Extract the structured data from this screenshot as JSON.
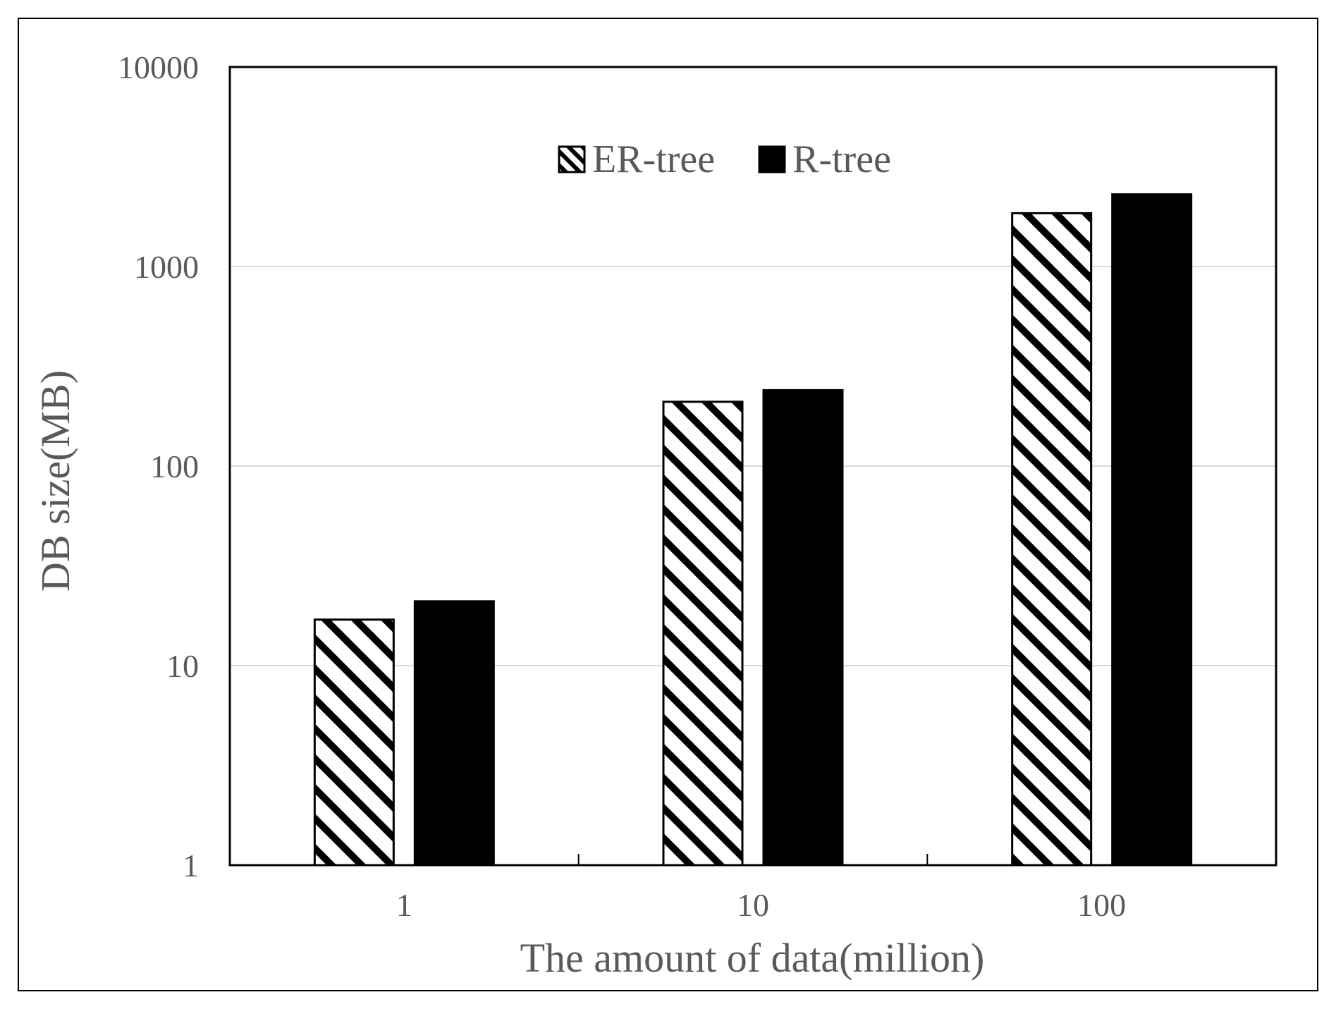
{
  "chart_data": {
    "type": "bar",
    "title": "",
    "xlabel": "The amount of data(million)",
    "ylabel": "DB size(MB)",
    "y_scale": "log",
    "ylim": [
      1,
      10000
    ],
    "y_ticks": [
      "1",
      "10",
      "100",
      "1000",
      "10000"
    ],
    "categories": [
      "1",
      "10",
      "100"
    ],
    "series": [
      {
        "name": "ER-tree",
        "pattern": "diagonal-stripes",
        "color": "#000000",
        "values": [
          17,
          210,
          1850
        ]
      },
      {
        "name": "R-tree",
        "pattern": "solid",
        "color": "#000000",
        "values": [
          21,
          240,
          2300
        ]
      }
    ],
    "grid": true,
    "gridline_color": "#d9d9d9",
    "legend_position": "top-center"
  }
}
